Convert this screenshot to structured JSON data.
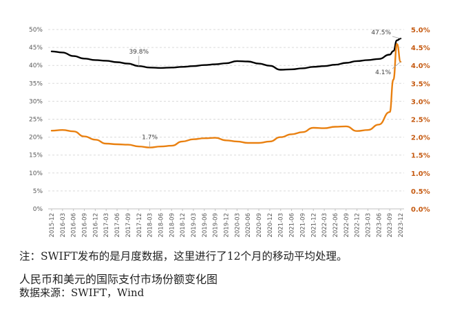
{
  "note": "注：SWIFT发布的是月度数据，这里进行了12个月的移动平均处理。",
  "title": "人民币和美元的国际支付市场份额变化图",
  "source": "数据来源：SWIFT，Wind",
  "chart_data": {
    "type": "line",
    "title": "",
    "xlabel": "",
    "ylabel": "",
    "left_axis": {
      "ylim": [
        0,
        50
      ],
      "ticks": [
        "0%",
        "5%",
        "10%",
        "15%",
        "20%",
        "25%",
        "30%",
        "35%",
        "40%",
        "45%",
        "50%"
      ]
    },
    "right_axis": {
      "ylim": [
        0,
        5
      ],
      "ticks": [
        "0.0%",
        "0.5%",
        "1.0%",
        "1.5%",
        "2.0%",
        "2.5%",
        "3.0%",
        "3.5%",
        "4.0%",
        "4.5%",
        "5.0%"
      ],
      "color": "#c55a11"
    },
    "grid": true,
    "x_tick_labels": [
      "2015-12",
      "2016-03",
      "2016-06",
      "2016-09",
      "2016-12",
      "2017-03",
      "2017-06",
      "2017-09",
      "2017-12",
      "2018-03",
      "2018-06",
      "2018-09",
      "2018-12",
      "2019-03",
      "2019-06",
      "2019-09",
      "2019-12",
      "2020-03",
      "2020-06",
      "2020-09",
      "2020-12",
      "2021-03",
      "2021-06",
      "2021-09",
      "2021-12",
      "2022-03",
      "2022-06",
      "2022-09",
      "2022-12",
      "2023-03",
      "2023-06",
      "2023-09",
      "2023-12"
    ],
    "series": [
      {
        "axis": "left",
        "color": "#000000",
        "x": [
          "2015-12",
          "2016-03",
          "2016-06",
          "2016-09",
          "2016-12",
          "2017-03",
          "2017-06",
          "2017-09",
          "2017-12",
          "2018-03",
          "2018-06",
          "2018-09",
          "2018-12",
          "2019-03",
          "2019-06",
          "2019-09",
          "2019-12",
          "2020-03",
          "2020-06",
          "2020-09",
          "2020-12",
          "2021-03",
          "2021-06",
          "2021-09",
          "2021-12",
          "2022-03",
          "2022-06",
          "2022-09",
          "2022-12",
          "2023-03",
          "2023-06",
          "2023-09",
          "2023-10",
          "2023-11",
          "2023-12"
        ],
        "values": [
          43.9,
          43.6,
          42.6,
          41.9,
          41.5,
          41.3,
          40.9,
          40.5,
          39.8,
          39.4,
          39.3,
          39.4,
          39.6,
          39.8,
          40.1,
          40.3,
          40.6,
          41.2,
          41.1,
          40.5,
          39.9,
          38.8,
          38.9,
          39.2,
          39.6,
          39.8,
          40.2,
          40.7,
          41.2,
          41.5,
          41.8,
          43.0,
          44.0,
          47.0,
          47.5
        ]
      },
      {
        "axis": "right",
        "color": "#e98010",
        "x": [
          "2015-12",
          "2016-03",
          "2016-06",
          "2016-09",
          "2016-12",
          "2017-03",
          "2017-06",
          "2017-09",
          "2017-12",
          "2018-03",
          "2018-06",
          "2018-09",
          "2018-12",
          "2019-03",
          "2019-06",
          "2019-09",
          "2019-12",
          "2020-03",
          "2020-06",
          "2020-09",
          "2020-12",
          "2021-03",
          "2021-06",
          "2021-09",
          "2021-12",
          "2022-03",
          "2022-06",
          "2022-09",
          "2022-12",
          "2023-03",
          "2023-06",
          "2023-09",
          "2023-10",
          "2023-11",
          "2023-12"
        ],
        "values": [
          2.18,
          2.2,
          2.16,
          2.02,
          1.93,
          1.82,
          1.8,
          1.79,
          1.74,
          1.71,
          1.74,
          1.76,
          1.88,
          1.94,
          1.97,
          1.98,
          1.91,
          1.88,
          1.84,
          1.84,
          1.88,
          2.0,
          2.08,
          2.14,
          2.26,
          2.25,
          2.29,
          2.3,
          2.17,
          2.2,
          2.35,
          2.7,
          3.6,
          4.6,
          4.1
        ]
      }
    ],
    "annotations": [
      {
        "text": "39.8%",
        "axis": "left",
        "x": "2017-12",
        "y": 39.8
      },
      {
        "text": "1.7%",
        "axis": "right",
        "x": "2018-03",
        "y": 1.71
      },
      {
        "text": "47.5%",
        "axis": "left",
        "x": "2023-12",
        "y": 47.5
      },
      {
        "text": "4.1%",
        "axis": "right",
        "x": "2023-12",
        "y": 4.1
      }
    ]
  }
}
